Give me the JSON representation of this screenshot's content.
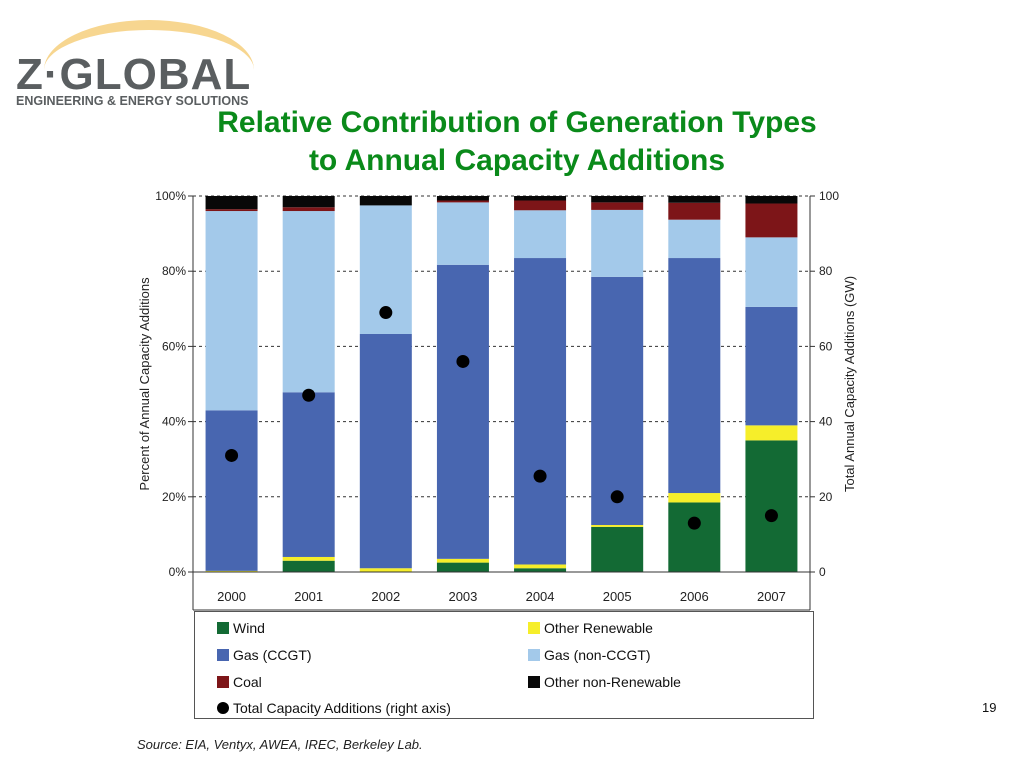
{
  "logo": {
    "name": "Z·GLOBAL",
    "tagline": "ENGINEERING & ENERGY SOLUTIONS"
  },
  "title_line1": "Relative Contribution of Generation Types",
  "title_line2": "to Annual Capacity Additions",
  "page_number": "19",
  "source": "Source: EIA, Ventyx, AWEA, IREC, Berkeley Lab.",
  "chart_data": {
    "type": "bar",
    "stacked": true,
    "categories": [
      "2000",
      "2001",
      "2002",
      "2003",
      "2004",
      "2005",
      "2006",
      "2007"
    ],
    "ylabel": "Percent of Annual Capacity Additions",
    "ylim": [
      0,
      100
    ],
    "y_ticks": [
      "0%",
      "20%",
      "40%",
      "60%",
      "80%",
      "100%"
    ],
    "y2label": "Total Annual Capacity Additions (GW)",
    "y2lim": [
      0,
      100
    ],
    "y2_ticks": [
      "0",
      "20",
      "40",
      "60",
      "80",
      "100"
    ],
    "grid": "dashed horizontal",
    "series": [
      {
        "name": "Wind",
        "color": "#136a34",
        "values": [
          0,
          3,
          0,
          2.5,
          1,
          12,
          18.5,
          35
        ]
      },
      {
        "name": "Other Renewable",
        "color": "#f6ee2a",
        "values": [
          0.3,
          1,
          1,
          1,
          1,
          0.5,
          2.5,
          4
        ]
      },
      {
        "name": "Gas (CCGT)",
        "color": "#4866b0",
        "values": [
          42.7,
          43.8,
          62.3,
          78.2,
          81.5,
          66,
          62.5,
          31.5
        ]
      },
      {
        "name": "Gas (non-CCGT)",
        "color": "#a3c9ea",
        "values": [
          53,
          48.2,
          34.2,
          16.6,
          12.7,
          17.8,
          10.2,
          18.5
        ]
      },
      {
        "name": "Coal",
        "color": "#7d1518",
        "values": [
          0.5,
          1,
          0,
          0.5,
          2.6,
          2,
          4.5,
          9
        ]
      },
      {
        "name": "Other non-Renewable",
        "color": "#080808",
        "values": [
          3.5,
          3,
          2.5,
          1.2,
          1.2,
          1.7,
          1.8,
          2
        ]
      }
    ],
    "total_gw": {
      "name": "Total Capacity Additions (right axis)",
      "color": "#000000",
      "values": [
        31,
        47,
        69,
        56,
        25.5,
        20,
        13,
        15
      ]
    }
  }
}
